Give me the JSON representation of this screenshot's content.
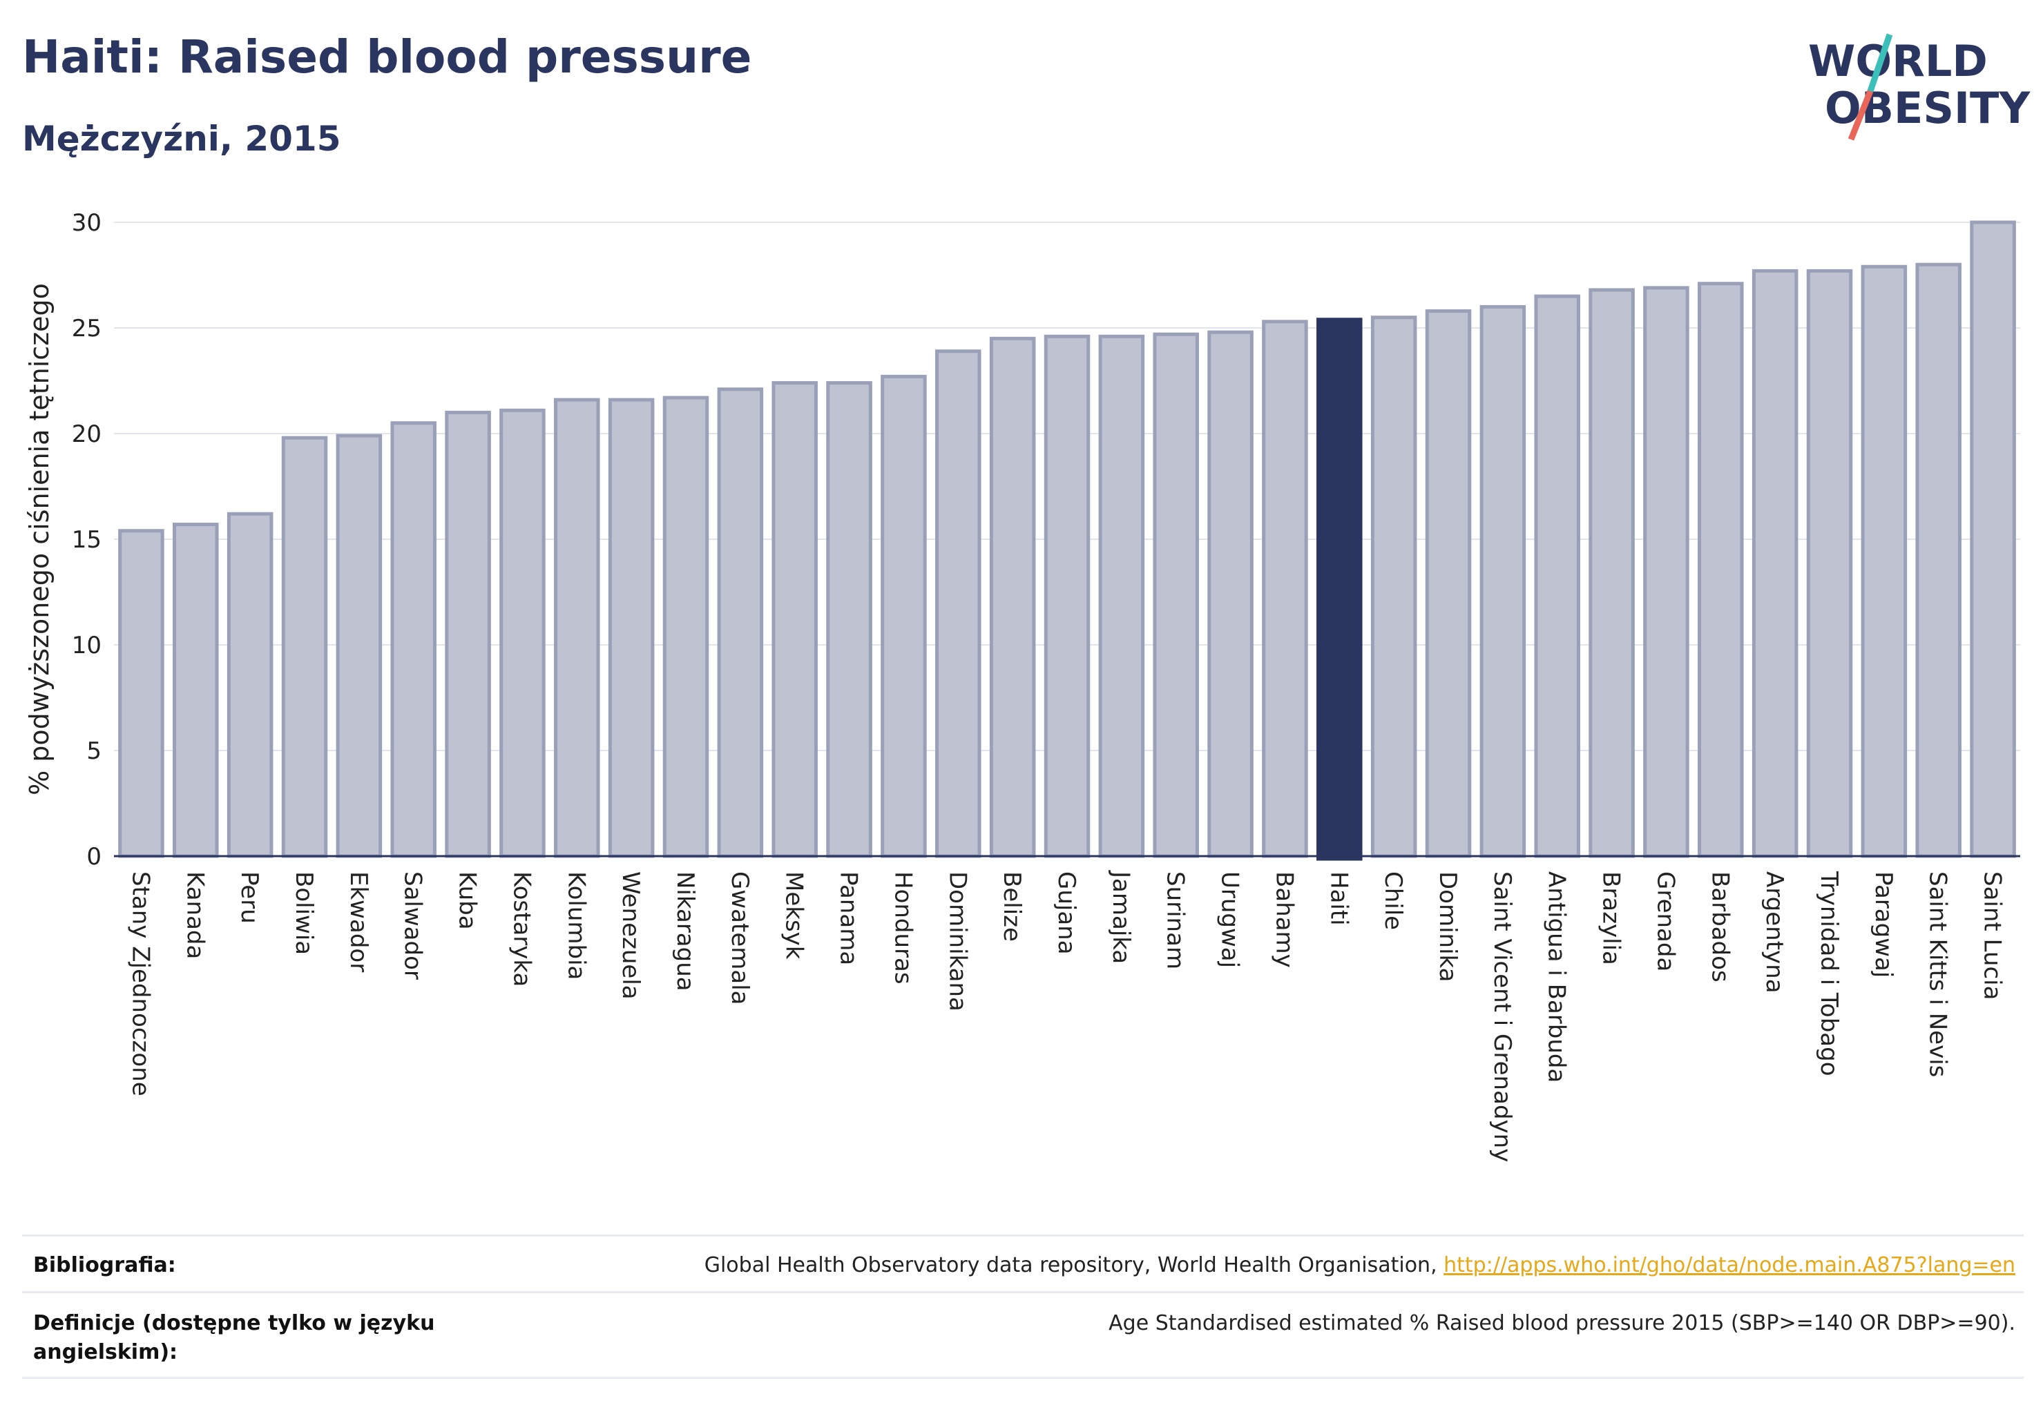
{
  "header": {
    "title": "Haiti: Raised blood pressure",
    "subtitle": "Mężczyźni, 2015",
    "logo_line1": "WORLD",
    "logo_line2": "OBESITY"
  },
  "colors": {
    "highlight": "#2a3560",
    "bar_fill": "#bfc2d0",
    "bar_stroke": "#9aa0b8",
    "logo_slash_top": "#3bbfb8",
    "logo_slash_bottom": "#e8665a",
    "link": "#e6a817"
  },
  "chart_data": {
    "type": "bar",
    "title": "Haiti: Raised blood pressure",
    "subtitle": "Mężczyźni, 2015",
    "ylabel": "% podwyższonego ciśnienia tętniczego",
    "xlabel": "",
    "ylim": [
      0,
      30
    ],
    "yticks": [
      0,
      5,
      10,
      15,
      20,
      25,
      30
    ],
    "grid": true,
    "highlight": "Haiti",
    "categories": [
      "Stany Zjednoczone",
      "Kanada",
      "Peru",
      "Boliwia",
      "Ekwador",
      "Salwador",
      "Kuba",
      "Kostaryka",
      "Kolumbia",
      "Wenezuela",
      "Nikaragua",
      "Gwatemala",
      "Meksyk",
      "Panama",
      "Honduras",
      "Dominikana",
      "Belize",
      "Gujana",
      "Jamajka",
      "Surinam",
      "Urugwaj",
      "Bahamy",
      "Haiti",
      "Chile",
      "Dominika",
      "Saint Vicent i Grenadyny",
      "Antigua i Barbuda",
      "Brazylia",
      "Grenada",
      "Barbados",
      "Argentyna",
      "Trynidad i Tobago",
      "Paragwaj",
      "Saint Kitts i Nevis",
      "Saint Lucia"
    ],
    "values": [
      15.4,
      15.7,
      16.2,
      19.8,
      19.9,
      20.5,
      21.0,
      21.1,
      21.6,
      21.6,
      21.7,
      22.1,
      22.4,
      22.4,
      22.7,
      23.9,
      24.5,
      24.6,
      24.6,
      24.7,
      24.8,
      25.3,
      25.4,
      25.5,
      25.8,
      26.0,
      26.5,
      26.8,
      26.9,
      27.1,
      27.7,
      27.7,
      27.9,
      28.0,
      30.0
    ]
  },
  "footer": {
    "bibliography_label": "Bibliografia:",
    "bibliography_text": "Global Health Observatory data repository, World Health Organisation, ",
    "bibliography_link": "http://apps.who.int/gho/data/node.main.A875?lang=en",
    "definitions_label_line1": "Definicje (dostępne tylko w języku",
    "definitions_label_line2": "angielskim):",
    "definitions_text": "Age Standardised estimated % Raised blood pressure 2015 (SBP>=140 OR DBP>=90)."
  }
}
